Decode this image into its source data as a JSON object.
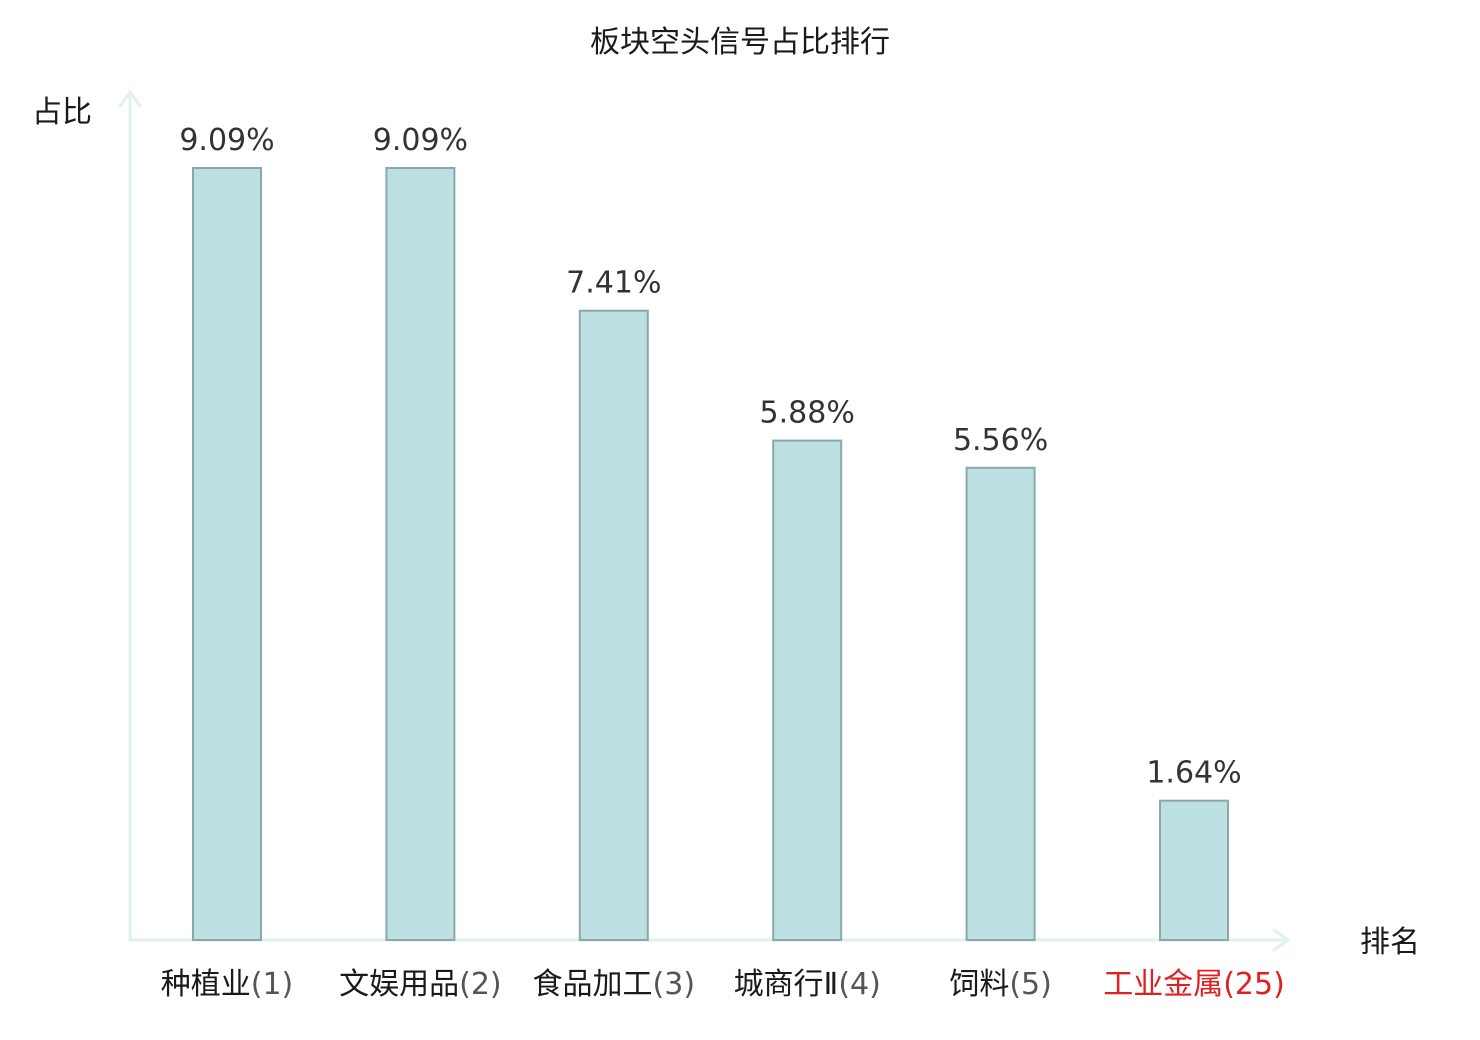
{
  "chart_data": {
    "type": "bar",
    "title": "板块空头信号占比排行",
    "ylabel": "占比",
    "xlabel": "排名",
    "categories": [
      {
        "name": "种植业",
        "rank": "(1)",
        "highlight": false
      },
      {
        "name": "文娱用品",
        "rank": "(2)",
        "highlight": false
      },
      {
        "name": "食品加工",
        "rank": "(3)",
        "highlight": false
      },
      {
        "name": "城商行Ⅱ",
        "rank": "(4)",
        "highlight": false
      },
      {
        "name": "饲料",
        "rank": "(5)",
        "highlight": false
      },
      {
        "name": "工业金属",
        "rank": "(25)",
        "highlight": true
      }
    ],
    "values": [
      9.09,
      9.09,
      7.41,
      5.88,
      5.56,
      1.64
    ],
    "value_labels": [
      "9.09%",
      "9.09%",
      "7.41%",
      "5.88%",
      "5.56%",
      "1.64%"
    ],
    "ylim": [
      0,
      9.09
    ],
    "grid": false,
    "colors": {
      "bar_fill": "#bde0e2",
      "bar_stroke": "#8aa8aa",
      "axis": "#e0f2ef",
      "highlight_text": "#e02020"
    }
  }
}
